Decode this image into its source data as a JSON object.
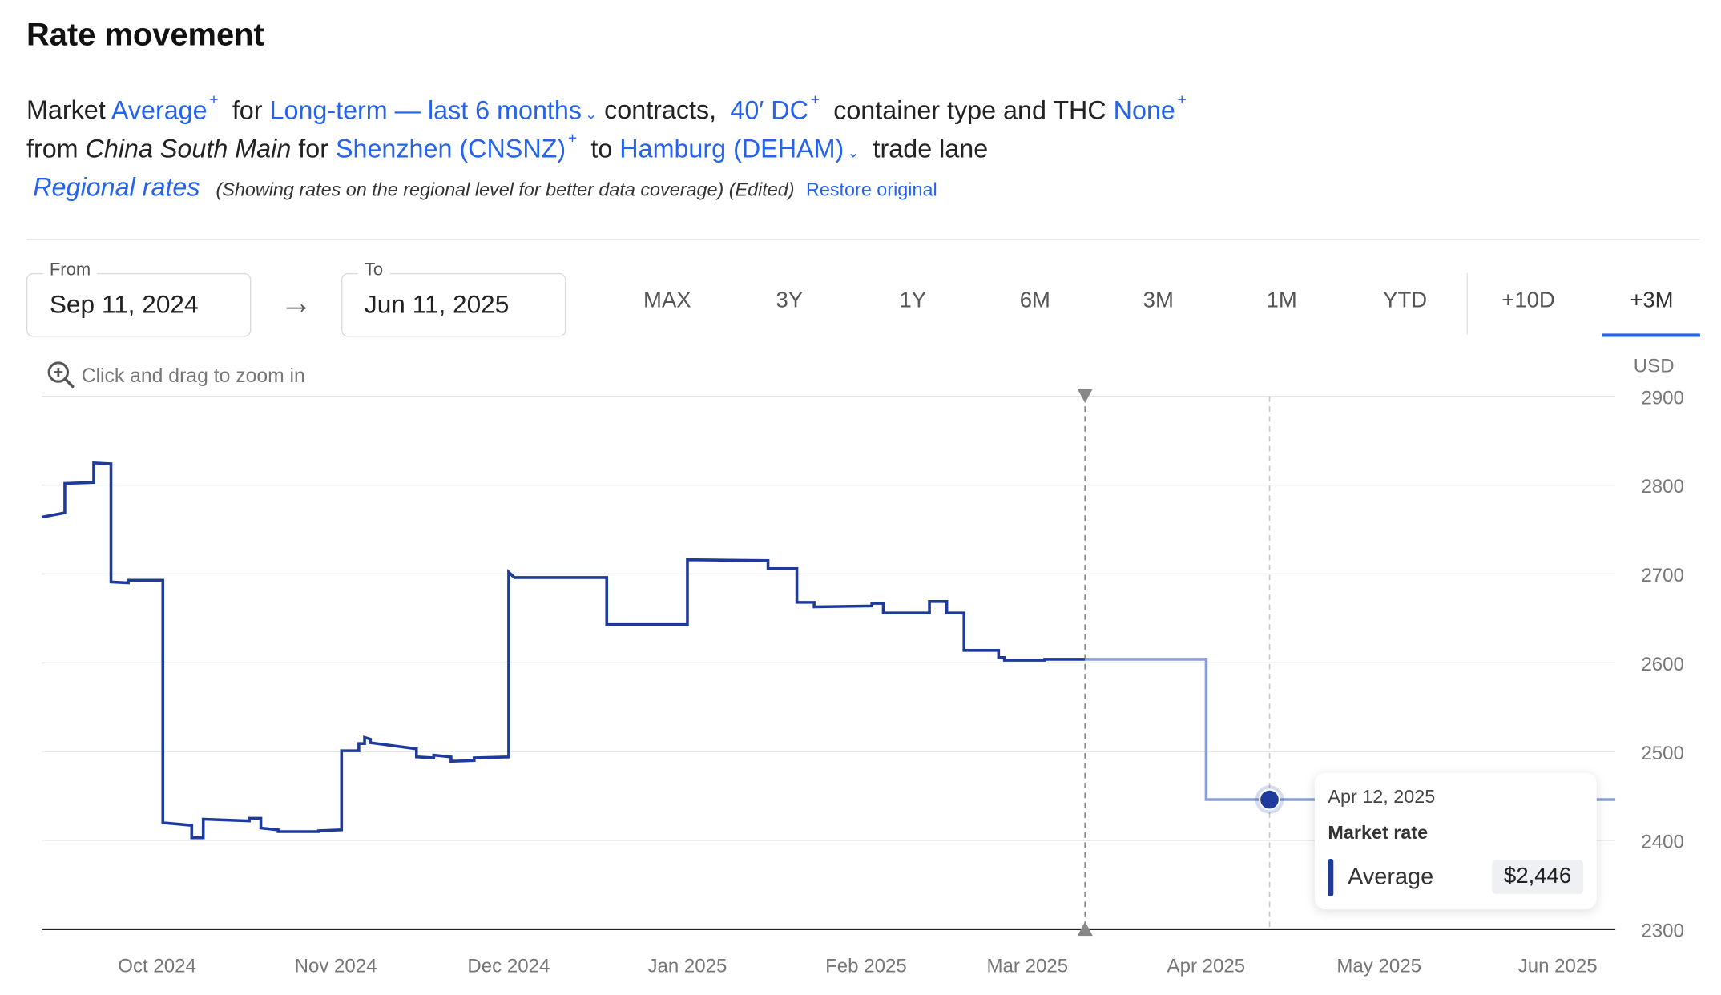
{
  "header": {
    "title": "Rate movement"
  },
  "filters": {
    "w_market": "Market",
    "market": "Average",
    "w_for": "for",
    "contract": "Long-term — last 6 months",
    "w_contracts": "contracts,",
    "container": "40′ DC",
    "w_container": "container type and THC",
    "thc": "None",
    "w_from": "from",
    "region": "China South Main",
    "w_for2": "for",
    "origin": "Shenzhen (CNSNZ)",
    "w_to": "to",
    "destination": "Hamburg (DEHAM)",
    "w_lane": "trade lane",
    "plus": "+",
    "chevron": "⌄",
    "regional_link": "Regional rates",
    "regional_note": "(Showing rates on the regional level for better data coverage) (Edited)",
    "restore": "Restore original"
  },
  "date_range": {
    "from_label": "From",
    "from_value": "Sep 11, 2024",
    "arrow": "→",
    "to_label": "To",
    "to_value": "Jun 11, 2025"
  },
  "range_buttons": [
    "MAX",
    "3Y",
    "1Y",
    "6M",
    "3M",
    "1M",
    "YTD",
    "+10D",
    "+3M"
  ],
  "range_selected": "+3M",
  "zoom_hint": "Click and drag to zoom in",
  "colors": {
    "line": "#1e3a9a",
    "line_forecast": "#8a9fd4",
    "accent": "#2563eb",
    "grid": "#e3e5e8"
  },
  "tooltip": {
    "date": "Apr 12, 2025",
    "label": "Market rate",
    "series": "Average",
    "value": "$2,446"
  },
  "chart_data": {
    "type": "line",
    "step": true,
    "x_unit": "date",
    "ylabel": "USD",
    "ylim": [
      2300,
      2900
    ],
    "yticks": [
      2900,
      2800,
      2700,
      2600,
      2500,
      2400,
      2300
    ],
    "xtick_labels": [
      "Oct 2024",
      "Nov 2024",
      "Dec 2024",
      "Jan 2025",
      "Feb 2025",
      "Mar 2025",
      "Apr 2025",
      "May 2025",
      "Jun 2025"
    ],
    "xtick_dates": [
      "2024-10-01",
      "2024-11-01",
      "2024-12-01",
      "2025-01-01",
      "2025-02-01",
      "2025-03-01",
      "2025-04-01",
      "2025-05-01",
      "2025-06-01"
    ],
    "x_range": [
      "2024-09-11",
      "2025-06-11"
    ],
    "grid": true,
    "series": [
      {
        "name": "Average",
        "segment": "historical",
        "points": [
          [
            "2024-09-11",
            2764
          ],
          [
            "2024-09-15",
            2769
          ],
          [
            "2024-09-15",
            2769
          ],
          [
            "2024-09-15",
            2802
          ],
          [
            "2024-09-20",
            2803
          ],
          [
            "2024-09-20",
            2825
          ],
          [
            "2024-09-23",
            2824
          ],
          [
            "2024-09-23",
            2691
          ],
          [
            "2024-09-26",
            2690
          ],
          [
            "2024-09-26",
            2693
          ],
          [
            "2024-10-02",
            2693
          ],
          [
            "2024-10-02",
            2420
          ],
          [
            "2024-10-07",
            2417
          ],
          [
            "2024-10-07",
            2403
          ],
          [
            "2024-10-09",
            2403
          ],
          [
            "2024-10-09",
            2424
          ],
          [
            "2024-10-17",
            2422
          ],
          [
            "2024-10-17",
            2425
          ],
          [
            "2024-10-19",
            2425
          ],
          [
            "2024-10-19",
            2414
          ],
          [
            "2024-10-22",
            2412
          ],
          [
            "2024-10-22",
            2410
          ],
          [
            "2024-10-29",
            2410
          ],
          [
            "2024-10-29",
            2411
          ],
          [
            "2024-11-02",
            2412
          ],
          [
            "2024-11-02",
            2501
          ],
          [
            "2024-11-05",
            2501
          ],
          [
            "2024-11-05",
            2509
          ],
          [
            "2024-11-06",
            2509
          ],
          [
            "2024-11-06",
            2516
          ],
          [
            "2024-11-07",
            2514
          ],
          [
            "2024-11-07",
            2510
          ],
          [
            "2024-11-15",
            2503
          ],
          [
            "2024-11-15",
            2494
          ],
          [
            "2024-11-18",
            2493
          ],
          [
            "2024-11-18",
            2496
          ],
          [
            "2024-11-21",
            2494
          ],
          [
            "2024-11-21",
            2489
          ],
          [
            "2024-11-25",
            2490
          ],
          [
            "2024-11-25",
            2493
          ],
          [
            "2024-12-01",
            2494
          ],
          [
            "2024-12-01",
            2702
          ],
          [
            "2024-12-02",
            2696
          ],
          [
            "2024-12-18",
            2696
          ],
          [
            "2024-12-18",
            2643
          ],
          [
            "2025-01-01",
            2643
          ],
          [
            "2025-01-01",
            2716
          ],
          [
            "2025-01-15",
            2715
          ],
          [
            "2025-01-15",
            2706
          ],
          [
            "2025-01-20",
            2706
          ],
          [
            "2025-01-20",
            2668
          ],
          [
            "2025-01-23",
            2668
          ],
          [
            "2025-01-23",
            2663
          ],
          [
            "2025-02-02",
            2664
          ],
          [
            "2025-02-02",
            2667
          ],
          [
            "2025-02-04",
            2667
          ],
          [
            "2025-02-04",
            2656
          ],
          [
            "2025-02-12",
            2656
          ],
          [
            "2025-02-12",
            2669
          ],
          [
            "2025-02-15",
            2669
          ],
          [
            "2025-02-15",
            2656
          ],
          [
            "2025-02-18",
            2656
          ],
          [
            "2025-02-18",
            2614
          ],
          [
            "2025-02-24",
            2614
          ],
          [
            "2025-02-24",
            2606
          ],
          [
            "2025-02-25",
            2606
          ],
          [
            "2025-02-25",
            2603
          ],
          [
            "2025-03-04",
            2603
          ],
          [
            "2025-03-04",
            2604
          ],
          [
            "2025-03-11",
            2604
          ]
        ]
      },
      {
        "name": "Average",
        "segment": "forecast",
        "points": [
          [
            "2025-03-11",
            2604
          ],
          [
            "2025-04-01",
            2604
          ],
          [
            "2025-04-01",
            2446
          ],
          [
            "2025-06-11",
            2446
          ]
        ]
      }
    ],
    "forecast_start": "2025-03-11",
    "hover": {
      "date": "2025-04-12",
      "value": 2446
    }
  }
}
